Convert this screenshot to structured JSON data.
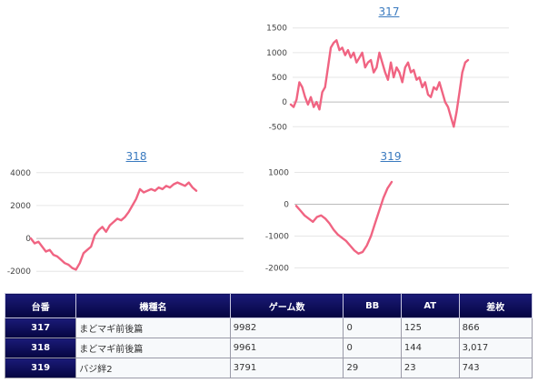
{
  "chart_data": [
    {
      "type": "line",
      "title": "317",
      "color": "#f06482",
      "ylim": [
        -550,
        1550
      ],
      "yticks": [
        1500,
        1000,
        500,
        0,
        -500
      ],
      "values": [
        -50,
        -100,
        50,
        400,
        300,
        100,
        -50,
        100,
        -100,
        0,
        -150,
        200,
        300,
        700,
        1100,
        1200,
        1250,
        1050,
        1100,
        950,
        1050,
        900,
        1000,
        800,
        900,
        1000,
        700,
        800,
        850,
        600,
        700,
        1000,
        800,
        600,
        450,
        800,
        500,
        700,
        600,
        400,
        700,
        800,
        600,
        650,
        450,
        500,
        300,
        400,
        150,
        100,
        300,
        250,
        400,
        200,
        0,
        -100,
        -300,
        -500,
        -200,
        200,
        600,
        800,
        850
      ]
    },
    {
      "type": "line",
      "title": "318",
      "color": "#f06482",
      "ylim": [
        -2100,
        4100
      ],
      "yticks": [
        4000,
        2000,
        0,
        -2000
      ],
      "values": [
        0,
        -300,
        -200,
        -500,
        -800,
        -700,
        -1000,
        -1100,
        -1300,
        -1500,
        -1600,
        -1800,
        -1900,
        -1500,
        -900,
        -700,
        -500,
        200,
        500,
        700,
        400,
        800,
        1000,
        1200,
        1100,
        1300,
        1600,
        2000,
        2400,
        3000,
        2800,
        2900,
        3000,
        2900,
        3100,
        3000,
        3200,
        3100,
        3300,
        3400,
        3300,
        3200,
        3400,
        3100,
        2900
      ]
    },
    {
      "type": "line",
      "title": "319",
      "color": "#f06482",
      "ylim": [
        -2100,
        1100
      ],
      "yticks": [
        1000,
        0,
        -1000,
        -2000
      ],
      "values": [
        -50,
        -200,
        -350,
        -450,
        -550,
        -400,
        -350,
        -450,
        -600,
        -800,
        -950,
        -1050,
        -1150,
        -1300,
        -1450,
        -1550,
        -1500,
        -1300,
        -1000,
        -600,
        -200,
        200,
        500,
        700
      ]
    }
  ],
  "table": {
    "headers": [
      "台番",
      "機種名",
      "ゲーム数",
      "BB",
      "AT",
      "差枚"
    ],
    "rows": [
      [
        "317",
        "まどマギ前後篇",
        "9982",
        "0",
        "125",
        "866"
      ],
      [
        "318",
        "まどマギ前後篇",
        "9961",
        "0",
        "144",
        "3,017"
      ],
      [
        "319",
        "バジ絆2",
        "3791",
        "29",
        "23",
        "743"
      ]
    ]
  }
}
